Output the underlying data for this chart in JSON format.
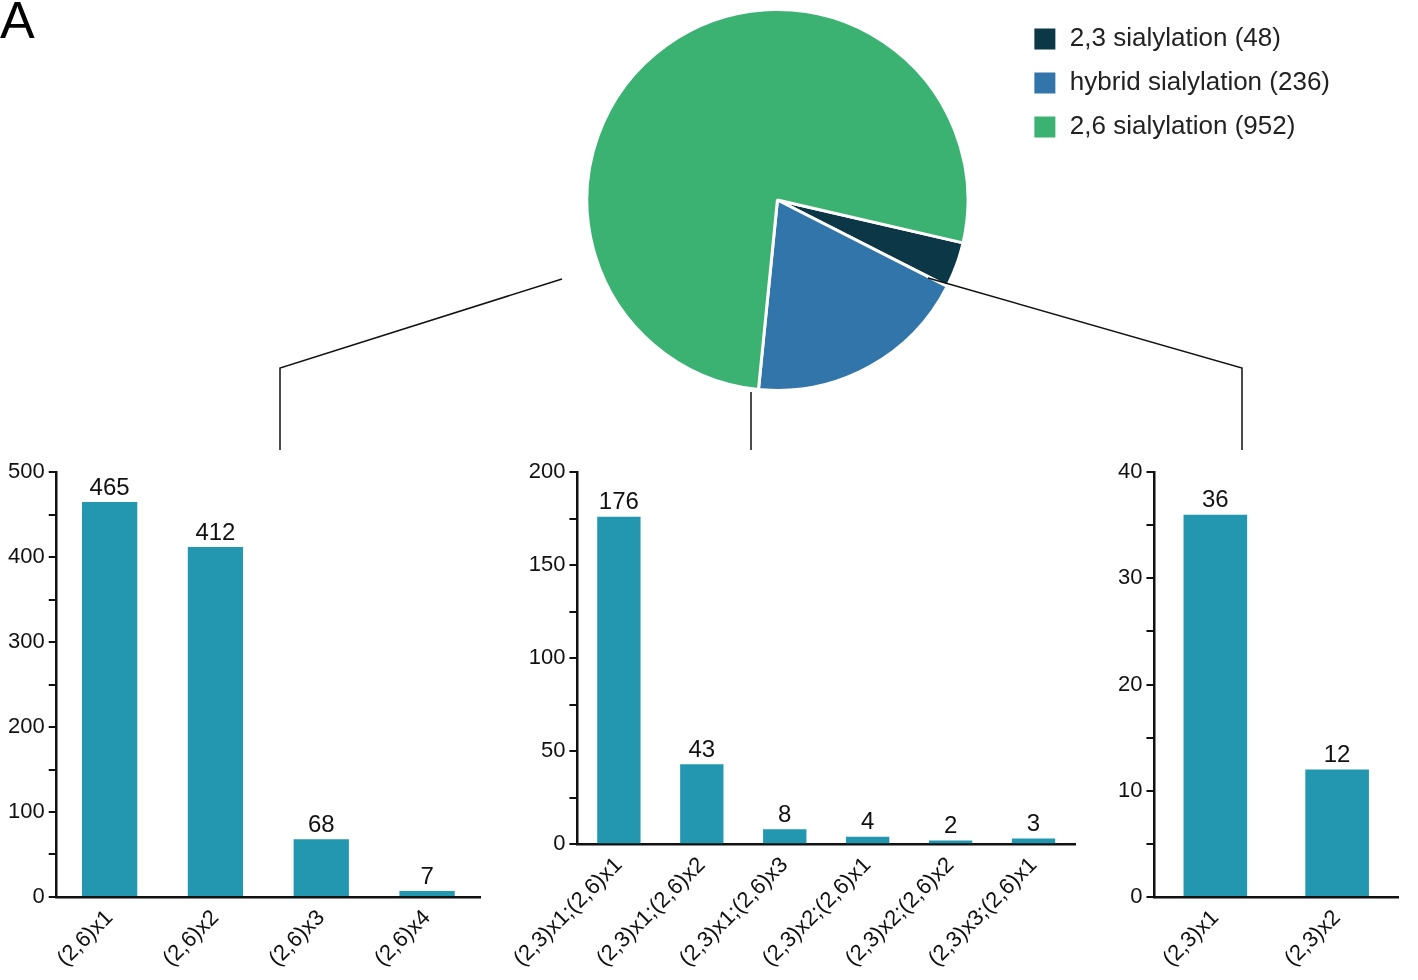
{
  "chart_data": [
    {
      "type": "pie",
      "annotations": [
        "A"
      ],
      "categories": [
        "2,3 sialylation (48)",
        "hybrid sialylation (236)",
        "2,6 sialylation (952)"
      ],
      "values": [
        48,
        236,
        952
      ],
      "colors": [
        "#0b3747",
        "#3175aa",
        "#3bb272"
      ],
      "legend": "right"
    },
    {
      "type": "bar",
      "categories": [
        "(2,6)x1",
        "(2,6)x2",
        "(2,6)x3",
        "(2,6)x4"
      ],
      "values": [
        465,
        412,
        68,
        7
      ],
      "color": "#2497b0",
      "ylim": [
        0,
        500
      ],
      "yticks": [
        0,
        {
          "value": 50,
          "label": null
        },
        100,
        {
          "value": 150,
          "label": null
        },
        200,
        {
          "value": 250,
          "label": null
        },
        300,
        {
          "value": 350,
          "label": null
        },
        400,
        {
          "value": 450,
          "label": null
        },
        500
      ],
      "data_labels": true
    },
    {
      "type": "bar",
      "categories": [
        "(2,3)x1;(2,6)x1",
        "(2,3)x1;(2,6)x2",
        "(2,3)x1;(2,6)x3",
        "(2,3)x2;(2,6)x1",
        "(2,3)x2;(2,6)x2",
        "(2,3)x3;(2,6)x1"
      ],
      "values": [
        176,
        43,
        8,
        4,
        2,
        3
      ],
      "color": "#2497b0",
      "ylim": [
        0,
        200
      ],
      "yticks": [
        0,
        {
          "value": 25,
          "label": null
        },
        50,
        {
          "value": 75,
          "label": null
        },
        100,
        {
          "value": 125,
          "label": null
        },
        150,
        {
          "value": 175,
          "label": null
        },
        200
      ],
      "data_labels": true
    },
    {
      "type": "bar",
      "categories": [
        "(2,3)x1",
        "(2,3)x2"
      ],
      "values": [
        36,
        12
      ],
      "color": "#2497b0",
      "ylim": [
        0,
        40
      ],
      "yticks": [
        0,
        {
          "value": 5,
          "label": null
        },
        10,
        {
          "value": 15,
          "label": null
        },
        20,
        {
          "value": 25,
          "label": null
        },
        30,
        {
          "value": 35,
          "label": null
        },
        40
      ],
      "data_labels": true
    }
  ]
}
